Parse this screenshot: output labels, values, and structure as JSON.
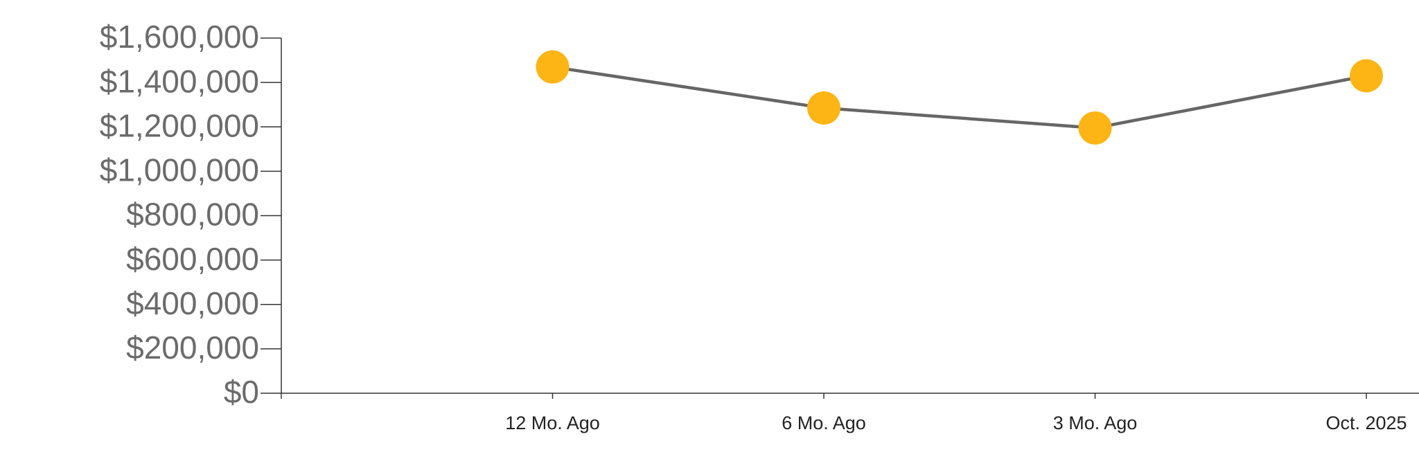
{
  "chart_data": {
    "type": "line",
    "categories": [
      "12 Mo. Ago",
      "6 Mo. Ago",
      "3 Mo. Ago",
      "Oct. 2025"
    ],
    "series": [
      {
        "color": "#fdb515",
        "values": [
          1470000,
          1285000,
          1195000,
          1430000
        ]
      }
    ],
    "ylim": [
      0,
      1600000
    ],
    "yticks": [
      {
        "value": 0,
        "label": "$0"
      },
      {
        "value": 200000,
        "label": "$200,000"
      },
      {
        "value": 400000,
        "label": "$400,000"
      },
      {
        "value": 600000,
        "label": "$600,000"
      },
      {
        "value": 800000,
        "label": "$800,000"
      },
      {
        "value": 1000000,
        "label": "$1,000,000"
      },
      {
        "value": 1200000,
        "label": "$1,200,000"
      },
      {
        "value": 1400000,
        "label": "$1,400,000"
      },
      {
        "value": 1600000,
        "label": "$1,600,000"
      }
    ],
    "grid": false
  }
}
